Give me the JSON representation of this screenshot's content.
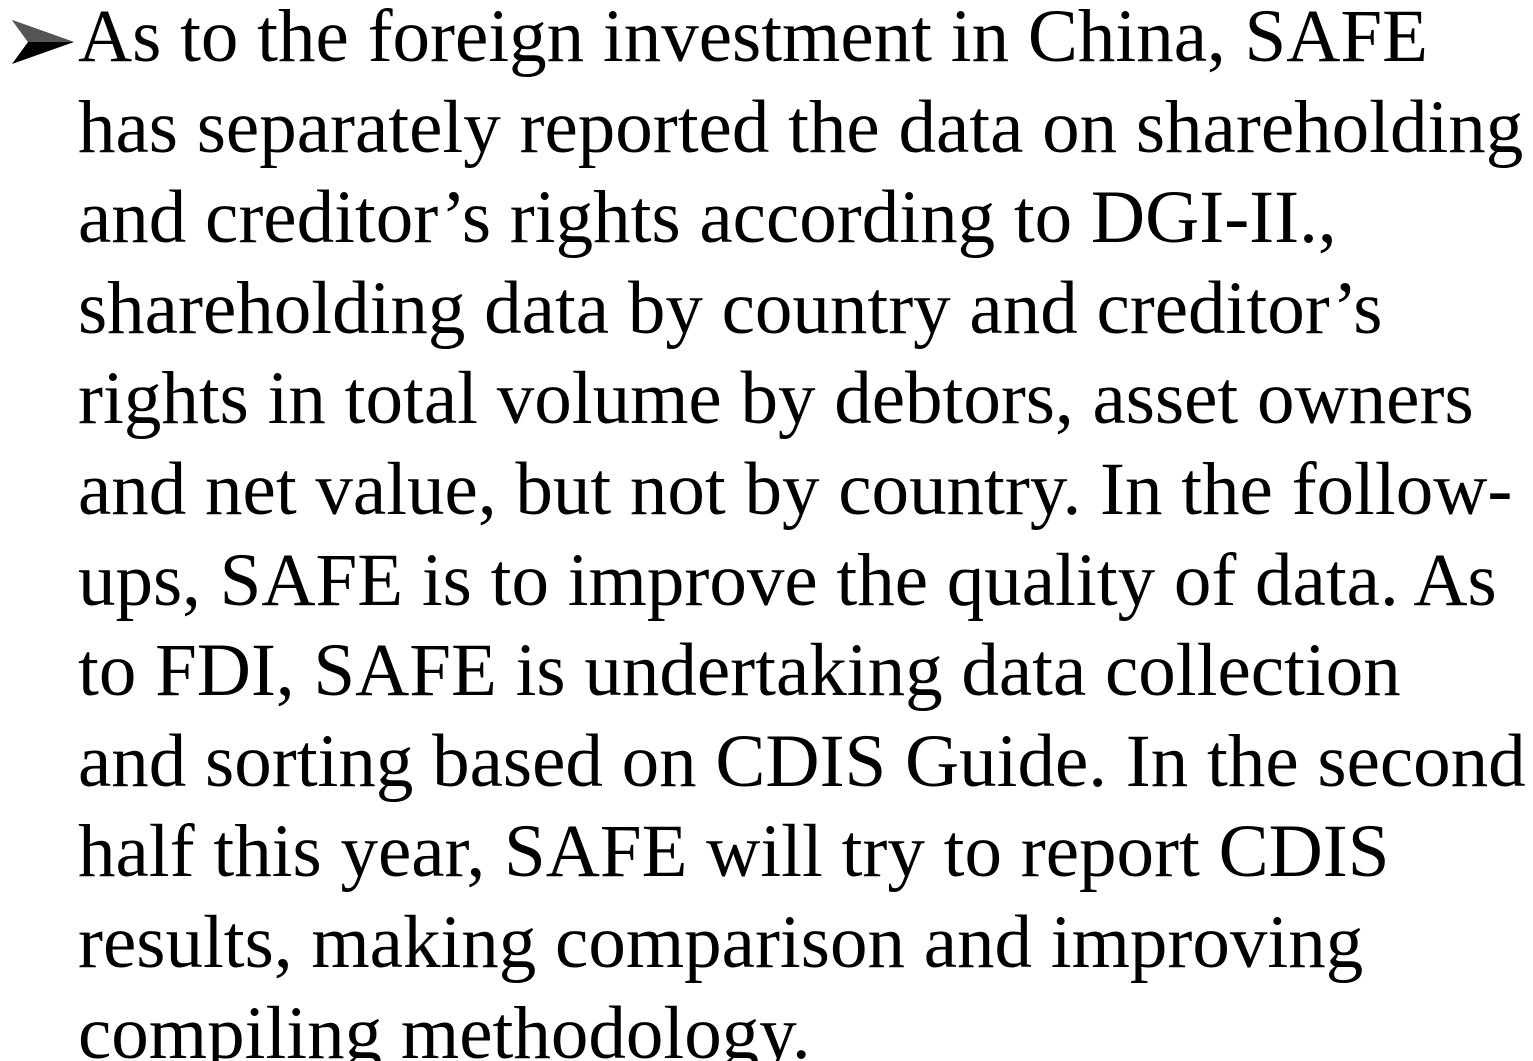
{
  "bullet": {
    "lines": [
      "As to the foreign investment in China, SAFE",
      "has separately reported the data on shareholding",
      "and creditor’s rights according to DGI-II.,",
      "shareholding data by country and creditor’s",
      "rights in total volume by debtors, asset owners",
      "and net value, but not by country. In the follow-",
      "ups, SAFE is to improve the quality of data. As",
      "to FDI, SAFE is undertaking data collection",
      "and sorting based on CDIS Guide. In the second",
      "half this year, SAFE will try to report CDIS",
      "results, making comparison and improving",
      "compiling methodology."
    ]
  }
}
